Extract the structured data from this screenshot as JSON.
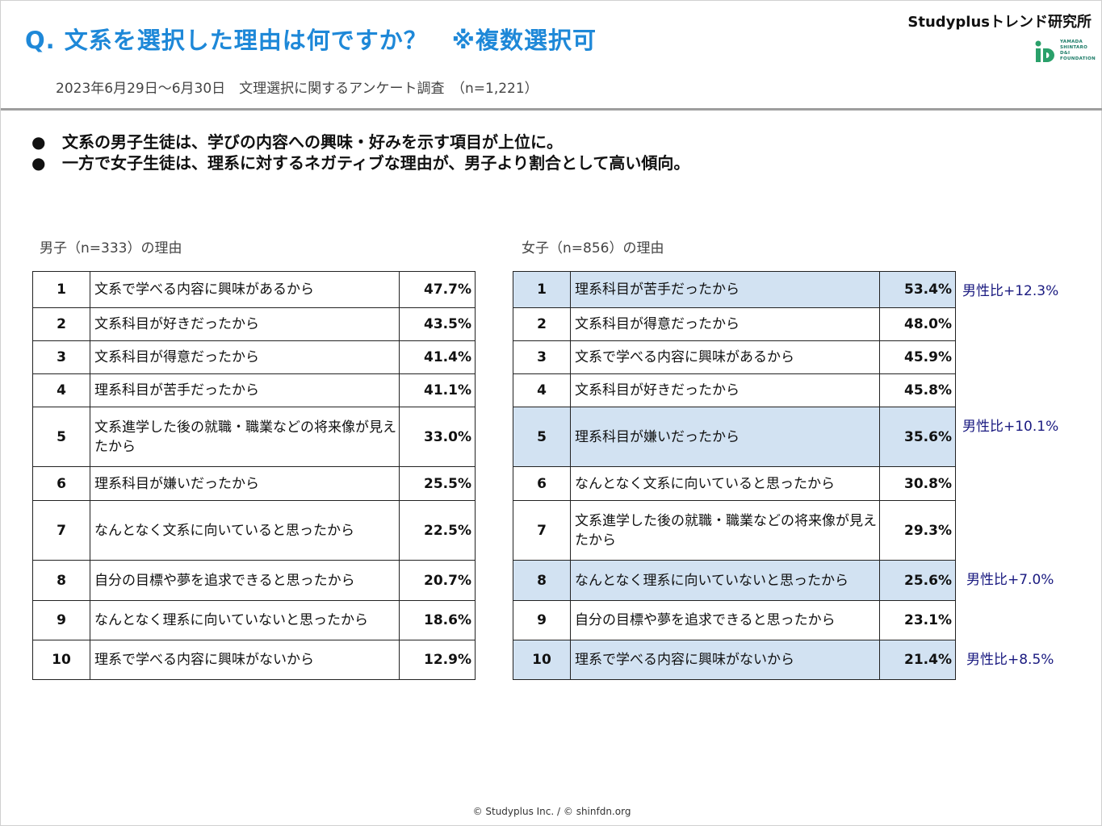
{
  "header": {
    "title": "Q. 文系を選択した理由は何ですか？　※複数選択可",
    "subtitle": "2023年6月29日～6月30日　文理選択に関するアンケート調査　（n=1,221）",
    "brand": "Studyplusトレンド研究所",
    "logo_text": [
      "YAMADA",
      "SHINTARO",
      "D&I",
      "FOUNDATION"
    ],
    "logo_color": "#2aa06a"
  },
  "bullets": [
    "文系の男子生徒は、学びの内容への興味・好みを示す項目が上位に。",
    "一方で女子生徒は、理系に対するネガティブな理由が、男子より割合として高い傾向。"
  ],
  "bullet_glyph": "●",
  "male": {
    "caption": "男子（n=333）の理由",
    "rows": [
      {
        "rank": "1",
        "reason": "文系で学べる内容に興味があるから",
        "pct": "47.7%"
      },
      {
        "rank": "2",
        "reason": "文系科目が好きだったから",
        "pct": "43.5%"
      },
      {
        "rank": "3",
        "reason": "文系科目が得意だったから",
        "pct": "41.4%"
      },
      {
        "rank": "4",
        "reason": "理系科目が苦手だったから",
        "pct": "41.1%"
      },
      {
        "rank": "5",
        "reason": "文系進学した後の就職・職業などの将来像が見えたから",
        "pct": "33.0%"
      },
      {
        "rank": "6",
        "reason": "理系科目が嫌いだったから",
        "pct": "25.5%"
      },
      {
        "rank": "7",
        "reason": "なんとなく文系に向いていると思ったから",
        "pct": "22.5%"
      },
      {
        "rank": "8",
        "reason": "自分の目標や夢を追求できると思ったから",
        "pct": "20.7%"
      },
      {
        "rank": "9",
        "reason": "なんとなく理系に向いていないと思ったから",
        "pct": "18.6%"
      },
      {
        "rank": "10",
        "reason": "理系で学べる内容に興味がないから",
        "pct": "12.9%"
      }
    ]
  },
  "female": {
    "caption": "女子（n=856）の理由",
    "highlight_color": "#d2e2f2",
    "rows": [
      {
        "rank": "1",
        "reason": "理系科目が苦手だったから",
        "pct": "53.4%",
        "highlight": true,
        "ratio": "男性比+12.3%"
      },
      {
        "rank": "2",
        "reason": "文系科目が得意だったから",
        "pct": "48.0%",
        "highlight": false,
        "ratio": ""
      },
      {
        "rank": "3",
        "reason": "文系で学べる内容に興味があるから",
        "pct": "45.9%",
        "highlight": false,
        "ratio": ""
      },
      {
        "rank": "4",
        "reason": "文系科目が好きだったから",
        "pct": "45.8%",
        "highlight": false,
        "ratio": ""
      },
      {
        "rank": "5",
        "reason": "理系科目が嫌いだったから",
        "pct": "35.6%",
        "highlight": true,
        "ratio": "男性比+10.1%"
      },
      {
        "rank": "6",
        "reason": "なんとなく文系に向いていると思ったから",
        "pct": "30.8%",
        "highlight": false,
        "ratio": ""
      },
      {
        "rank": "7",
        "reason": "文系進学した後の就職・職業などの将来像が見えたから",
        "pct": "29.3%",
        "highlight": false,
        "ratio": ""
      },
      {
        "rank": "8",
        "reason": "なんとなく理系に向いていないと思ったから",
        "pct": "25.6%",
        "highlight": true,
        "ratio": "男性比+7.0%"
      },
      {
        "rank": "9",
        "reason": "自分の目標や夢を追求できると思ったから",
        "pct": "23.1%",
        "highlight": false,
        "ratio": ""
      },
      {
        "rank": "10",
        "reason": "理系で学べる内容に興味がないから",
        "pct": "21.4%",
        "highlight": true,
        "ratio": "男性比+8.5%"
      }
    ]
  },
  "footer": "© Studyplus Inc. /  © shinfdn.org"
}
